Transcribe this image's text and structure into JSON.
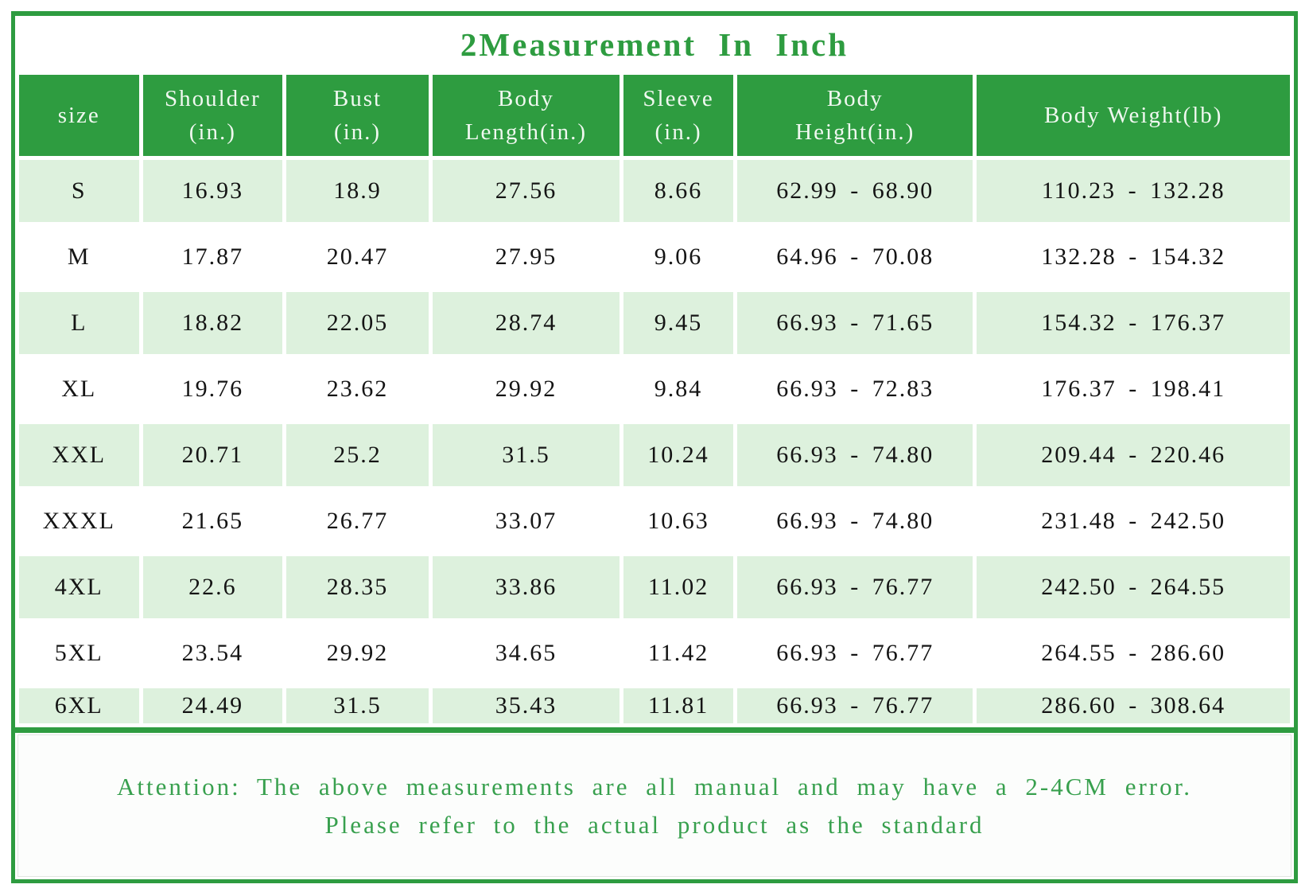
{
  "title": "2Measurement In Inch",
  "chart_data": {
    "type": "table",
    "title": "2Measurement In Inch",
    "columns": [
      "size",
      "Shoulder\n(in.)",
      "Bust\n(in.)",
      "Body\nLength(in.)",
      "Sleeve\n(in.)",
      "Body\nHeight(in.)",
      "Body Weight(lb)"
    ],
    "rows": [
      [
        "S",
        "16.93",
        "18.9",
        "27.56",
        "8.66",
        "62.99 - 68.90",
        "110.23 - 132.28"
      ],
      [
        "M",
        "17.87",
        "20.47",
        "27.95",
        "9.06",
        "64.96 - 70.08",
        "132.28 - 154.32"
      ],
      [
        "L",
        "18.82",
        "22.05",
        "28.74",
        "9.45",
        "66.93 - 71.65",
        "154.32 - 176.37"
      ],
      [
        "XL",
        "19.76",
        "23.62",
        "29.92",
        "9.84",
        "66.93 - 72.83",
        "176.37 - 198.41"
      ],
      [
        "XXL",
        "20.71",
        "25.2",
        "31.5",
        "10.24",
        "66.93 - 74.80",
        "209.44 - 220.46"
      ],
      [
        "XXXL",
        "21.65",
        "26.77",
        "33.07",
        "10.63",
        "66.93 - 74.80",
        "231.48 - 242.50"
      ],
      [
        "4XL",
        "22.6",
        "28.35",
        "33.86",
        "11.02",
        "66.93 - 76.77",
        "242.50 - 264.55"
      ],
      [
        "5XL",
        "23.54",
        "29.92",
        "34.65",
        "11.42",
        "66.93 - 76.77",
        "264.55 - 286.60"
      ],
      [
        "6XL",
        "24.49",
        "31.5",
        "35.43",
        "11.81",
        "66.93 - 76.77",
        "286.60 - 308.64"
      ]
    ],
    "column_widths_percent": [
      9.6,
      11.2,
      11.4,
      15.0,
      8.8,
      18.9,
      25.1
    ],
    "striped_rows": "odd rows light green (S, L, XXL, 4XL, 6XL), even rows white"
  },
  "footer": {
    "line1": "Attention: The above measurements are all manual and may have a 2-4CM error.",
    "line2": "Please refer to the actual product as the standard"
  },
  "colors": {
    "header_green": "#2e9c40",
    "frame_green": "#2e9c40",
    "row_light_green": "#ddf1dd",
    "title_text_green": "#2e9c40",
    "footer_text_green": "#38a04e",
    "header_text": "#f0f8f0",
    "body_text": "#141414"
  }
}
